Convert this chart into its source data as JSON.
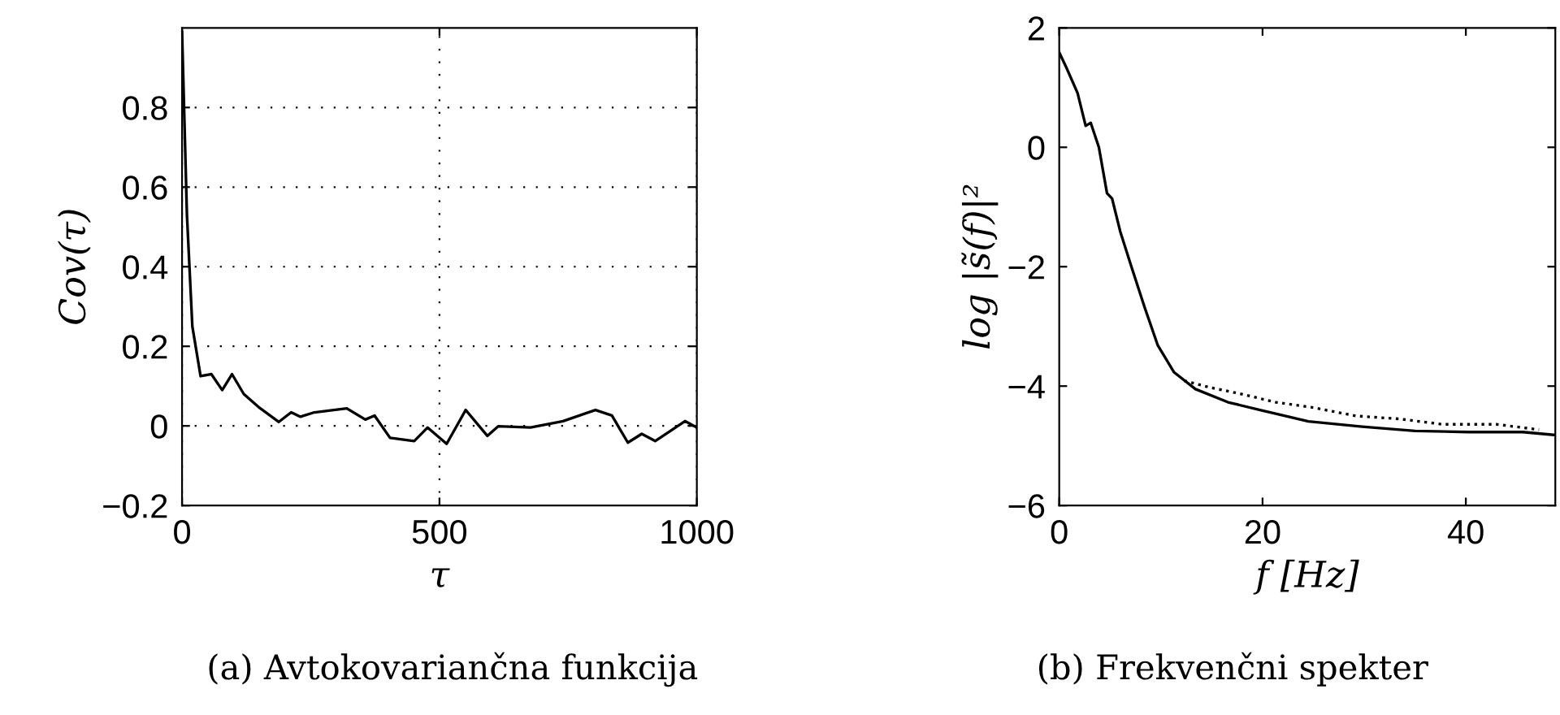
{
  "chart_data": [
    {
      "type": "line",
      "xlabel": "τ",
      "ylabel": "Cov(τ)",
      "annotations": [
        "(a) Avtokovariančna funkcija"
      ],
      "xlim": [
        0,
        1000
      ],
      "ylim": [
        -0.2,
        1
      ],
      "xticks": [
        0,
        500,
        1000
      ],
      "yticks": [
        -0.2,
        0,
        0.2,
        0.4,
        0.6,
        0.8
      ],
      "grid": true,
      "series": [
        {
          "color": "#000000",
          "x": [
            0,
            9.5,
            20,
            36,
            57,
            78,
            97,
            120,
            151,
            188,
            212,
            230,
            257,
            320,
            356,
            374,
            404,
            451,
            477,
            514,
            551,
            593,
            614,
            677,
            740,
            803,
            835,
            866,
            893,
            919,
            977,
            1000
          ],
          "values": [
            0.99,
            0.53,
            0.25,
            0.125,
            0.13,
            0.09,
            0.13,
            0.08,
            0.045,
            0.01,
            0.034,
            0.023,
            0.034,
            0.044,
            0.016,
            0.026,
            -0.03,
            -0.038,
            -0.004,
            -0.045,
            0.04,
            -0.025,
            -0.001,
            -0.004,
            0.012,
            0.04,
            0.026,
            -0.042,
            -0.02,
            -0.038,
            0.012,
            -0.004
          ]
        }
      ]
    },
    {
      "type": "line",
      "xlabel": "f [Hz]",
      "ylabel": "log |s̃(f)|²",
      "annotations": [
        "(b) Frekvenčni spekter"
      ],
      "xlim": [
        0,
        48.8
      ],
      "ylim": [
        -6,
        2
      ],
      "xticks": [
        0,
        20,
        40
      ],
      "yticks": [
        -6,
        -4,
        -2,
        0,
        2
      ],
      "grid": false,
      "series": [
        {
          "color": "#000000",
          "line_style": "solid",
          "x": [
            0,
            0.74,
            1.8,
            2.6,
            3.1,
            3.9,
            4.7,
            5.2,
            6,
            7.1,
            8.4,
            9.7,
            11.3,
            13.4,
            16.6,
            20,
            24.5,
            29.8,
            35,
            40.3,
            45.6,
            48.8
          ],
          "values": [
            1.59,
            1.32,
            0.91,
            0.36,
            0.41,
            0,
            -0.77,
            -0.86,
            -1.41,
            -2.0,
            -2.68,
            -3.32,
            -3.77,
            -4.05,
            -4.27,
            -4.41,
            -4.59,
            -4.68,
            -4.75,
            -4.77,
            -4.77,
            -4.82
          ]
        },
        {
          "color": "#000000",
          "line_style": "dotted",
          "x": [
            12.3,
            15,
            17.6,
            21.3,
            25,
            29.2,
            33.5,
            37.7,
            43,
            47.2
          ],
          "values": [
            -3.91,
            -4.03,
            -4.12,
            -4.27,
            -4.36,
            -4.5,
            -4.55,
            -4.64,
            -4.64,
            -4.73
          ]
        }
      ]
    }
  ]
}
